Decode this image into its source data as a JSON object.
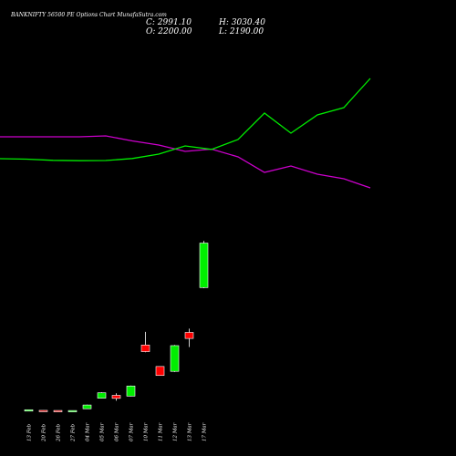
{
  "chart_data": {
    "type": "candlestick",
    "title": "BANKNIFTY 56500  PE Options  Chart MunafaSutra.com",
    "ohlc": {
      "close_label": "C: 2991.10",
      "high_label": "H: 3030.40",
      "open_label": "O: 2200.00",
      "low_label": "L: 2190.00"
    },
    "colors": {
      "up": "#00ee00",
      "down": "#ff0000",
      "wick": "#ffffff",
      "line_green": "#00ee00",
      "line_magenta": "#cc00cc",
      "background": "#000000"
    },
    "candles": [
      {
        "date": "13 Feb",
        "open": 20,
        "high": 30,
        "low": 15,
        "close": 28
      },
      {
        "date": "20 Feb",
        "open": 17,
        "high": 19,
        "low": 11,
        "close": 13
      },
      {
        "date": "26 Feb",
        "open": 15,
        "high": 17,
        "low": 9,
        "close": 11
      },
      {
        "date": "27 Feb",
        "open": 11,
        "high": 16,
        "low": 10,
        "close": 14
      },
      {
        "date": "04 Mar",
        "open": 45,
        "high": 118,
        "low": 40,
        "close": 112
      },
      {
        "date": "05 Mar",
        "open": 233,
        "high": 338,
        "low": 228,
        "close": 330
      },
      {
        "date": "06 Mar",
        "open": 284,
        "high": 320,
        "low": 188,
        "close": 230
      },
      {
        "date": "07 Mar",
        "open": 270,
        "high": 458,
        "low": 265,
        "close": 450
      },
      {
        "date": "10 Mar",
        "open": 1179,
        "high": 1412,
        "low": 1050,
        "close": 1061
      },
      {
        "date": "11 Mar",
        "open": 797,
        "high": 797,
        "low": 637,
        "close": 637
      },
      {
        "date": "12 Mar",
        "open": 710,
        "high": 1180,
        "low": 700,
        "close": 1168
      },
      {
        "date": "13 Mar",
        "open": 1403,
        "high": 1470,
        "low": 1143,
        "close": 1295
      },
      {
        "date": "17 Mar",
        "open": 2200,
        "high": 3030.4,
        "low": 2190,
        "close": 2991.1
      }
    ],
    "line_green": [
      1880,
      1875,
      1862,
      1858,
      1860,
      1882,
      1930,
      2020,
      1982,
      2090,
      2380,
      2160,
      2360,
      2440,
      2760
    ],
    "line_magenta": [
      2120,
      2120,
      2120,
      2120,
      2130,
      2075,
      2030,
      1960,
      1985,
      1900,
      1730,
      1800,
      1710,
      1660,
      1560
    ]
  }
}
